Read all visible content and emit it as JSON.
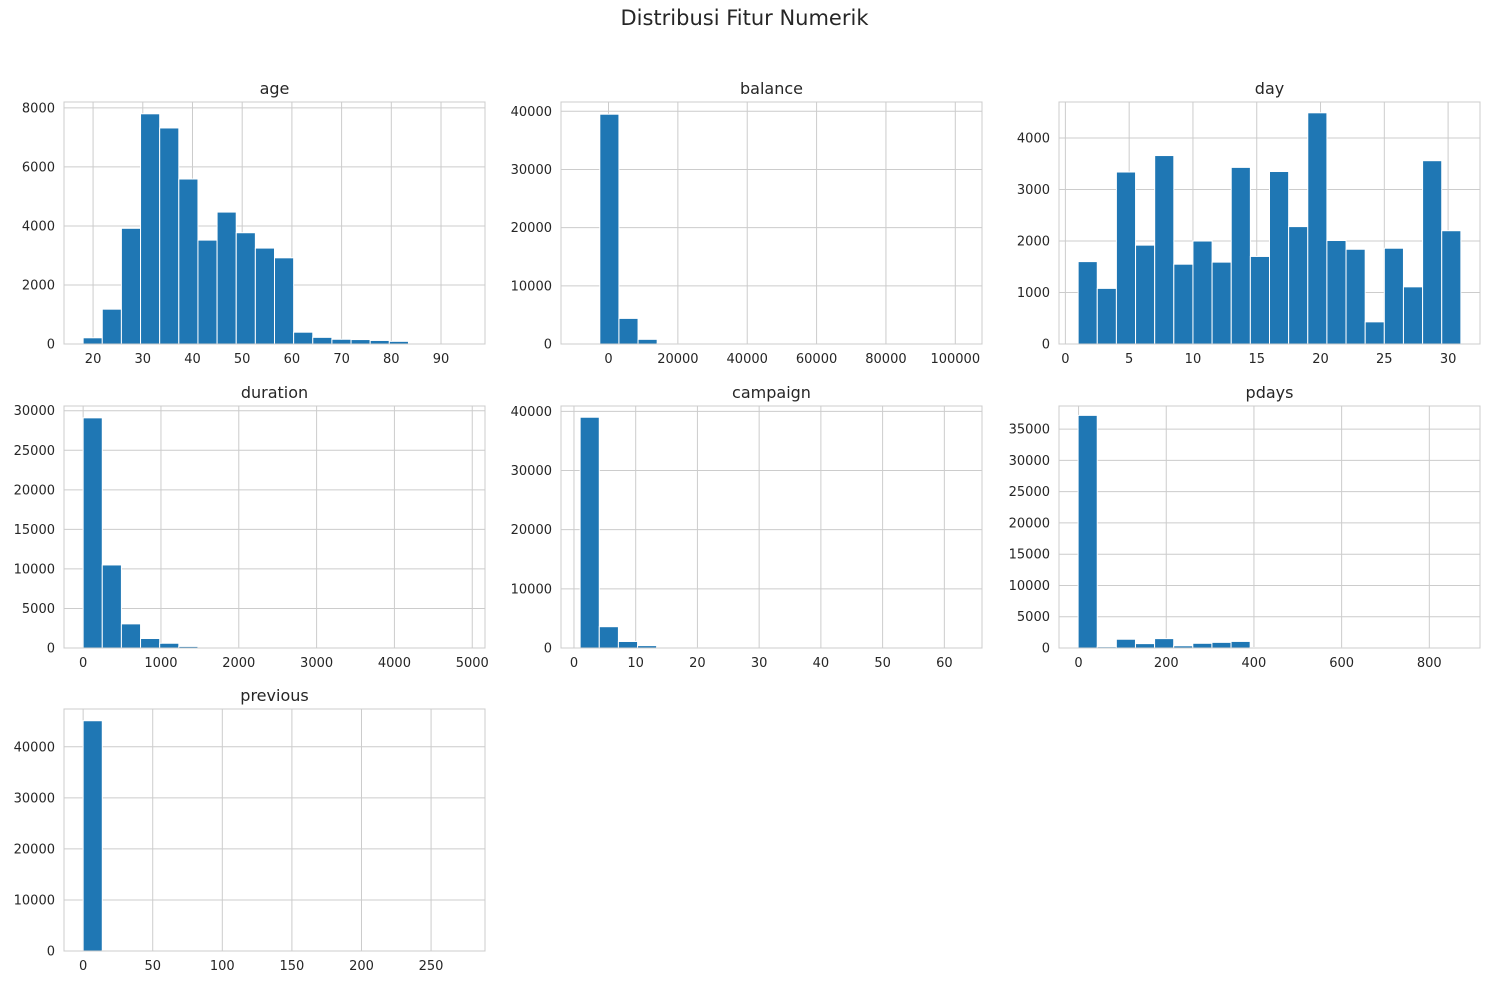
{
  "figure": {
    "title": "Distribusi Fitur Numerik",
    "bar_color": "#1f77b4",
    "grid_color": "#cccccc",
    "frame_color": "#cccccc"
  },
  "chart_data": [
    {
      "type": "bar",
      "title": "age",
      "grid": true,
      "xlim": [
        14.15,
        98.85
      ],
      "ylim": [
        0,
        8200
      ],
      "xticks": [
        20,
        30,
        40,
        50,
        60,
        70,
        80,
        90
      ],
      "yticks": [
        0,
        2000,
        4000,
        6000,
        8000
      ],
      "bin_start": 18,
      "bin_width": 3.85,
      "values": [
        210,
        1180,
        3920,
        7800,
        7320,
        5590,
        3520,
        4470,
        3770,
        3250,
        2920,
        400,
        225,
        160,
        150,
        120,
        90,
        0,
        0,
        0
      ]
    },
    {
      "type": "bar",
      "title": "balance",
      "grid": true,
      "xlim": [
        -13700,
        107700
      ],
      "ylim": [
        0,
        41600
      ],
      "xticks": [
        0,
        20000,
        40000,
        60000,
        80000,
        100000
      ],
      "yticks": [
        0,
        10000,
        20000,
        30000,
        40000
      ],
      "bin_start": -8019,
      "bin_width": 5512,
      "values": [
        0,
        39500,
        4400,
        800,
        60,
        20,
        10,
        5,
        3,
        2,
        1,
        1,
        1,
        0,
        0,
        0,
        0,
        0,
        0,
        1
      ]
    },
    {
      "type": "bar",
      "title": "day",
      "grid": true,
      "xlim": [
        -0.5,
        32.5
      ],
      "ylim": [
        0,
        4700
      ],
      "xticks": [
        0,
        5,
        10,
        15,
        20,
        25,
        30
      ],
      "yticks": [
        0,
        1000,
        2000,
        3000,
        4000
      ],
      "bin_start": 1,
      "bin_width": 1.5,
      "values": [
        1600,
        1080,
        3340,
        1920,
        3660,
        1550,
        2000,
        1590,
        3430,
        1700,
        3350,
        2280,
        4490,
        2010,
        1840,
        430,
        1860,
        1110,
        3560,
        2200
      ]
    },
    {
      "type": "bar",
      "title": "duration",
      "grid": true,
      "xlim": [
        -245.9,
        5163.9
      ],
      "ylim": [
        0,
        30600
      ],
      "xticks": [
        0,
        1000,
        2000,
        3000,
        4000,
        5000
      ],
      "yticks": [
        0,
        5000,
        10000,
        15000,
        20000,
        25000,
        30000
      ],
      "bin_start": 0,
      "bin_width": 245.9,
      "values": [
        29100,
        10500,
        3050,
        1200,
        600,
        200,
        80,
        30,
        15,
        10,
        5,
        3,
        2,
        1,
        1,
        1,
        0,
        0,
        0,
        1
      ]
    },
    {
      "type": "bar",
      "title": "campaign",
      "grid": true,
      "xlim": [
        -2.1,
        66.1
      ],
      "ylim": [
        0,
        40900
      ],
      "xticks": [
        0,
        10,
        20,
        30,
        40,
        50,
        60
      ],
      "yticks": [
        0,
        10000,
        20000,
        30000,
        40000
      ],
      "bin_start": 1,
      "bin_width": 3.1,
      "values": [
        39000,
        3600,
        1100,
        400,
        150,
        60,
        30,
        15,
        10,
        5,
        3,
        2,
        1,
        1,
        0,
        0,
        0,
        0,
        0,
        1
      ]
    },
    {
      "type": "bar",
      "title": "pdays",
      "grid": true,
      "xlim": [
        -44.6,
        915.6
      ],
      "ylim": [
        0,
        38700
      ],
      "xticks": [
        0,
        200,
        400,
        600,
        800
      ],
      "yticks": [
        0,
        5000,
        10000,
        15000,
        20000,
        25000,
        30000,
        35000
      ],
      "bin_start": -1,
      "bin_width": 43.6,
      "values": [
        37200,
        200,
        1400,
        700,
        1500,
        350,
        750,
        900,
        1050,
        80,
        50,
        30,
        20,
        20,
        10,
        10,
        5,
        5,
        3,
        2
      ]
    },
    {
      "type": "bar",
      "title": "previous",
      "grid": true,
      "xlim": [
        -13.75,
        288.75
      ],
      "ylim": [
        0,
        47400
      ],
      "xticks": [
        0,
        50,
        100,
        150,
        200,
        250
      ],
      "yticks": [
        0,
        10000,
        20000,
        30000,
        40000
      ],
      "bin_start": 0,
      "bin_width": 13.75,
      "values": [
        45100,
        80,
        20,
        5,
        2,
        1,
        1,
        0,
        0,
        0,
        0,
        0,
        0,
        0,
        0,
        0,
        0,
        0,
        0,
        1
      ]
    }
  ]
}
